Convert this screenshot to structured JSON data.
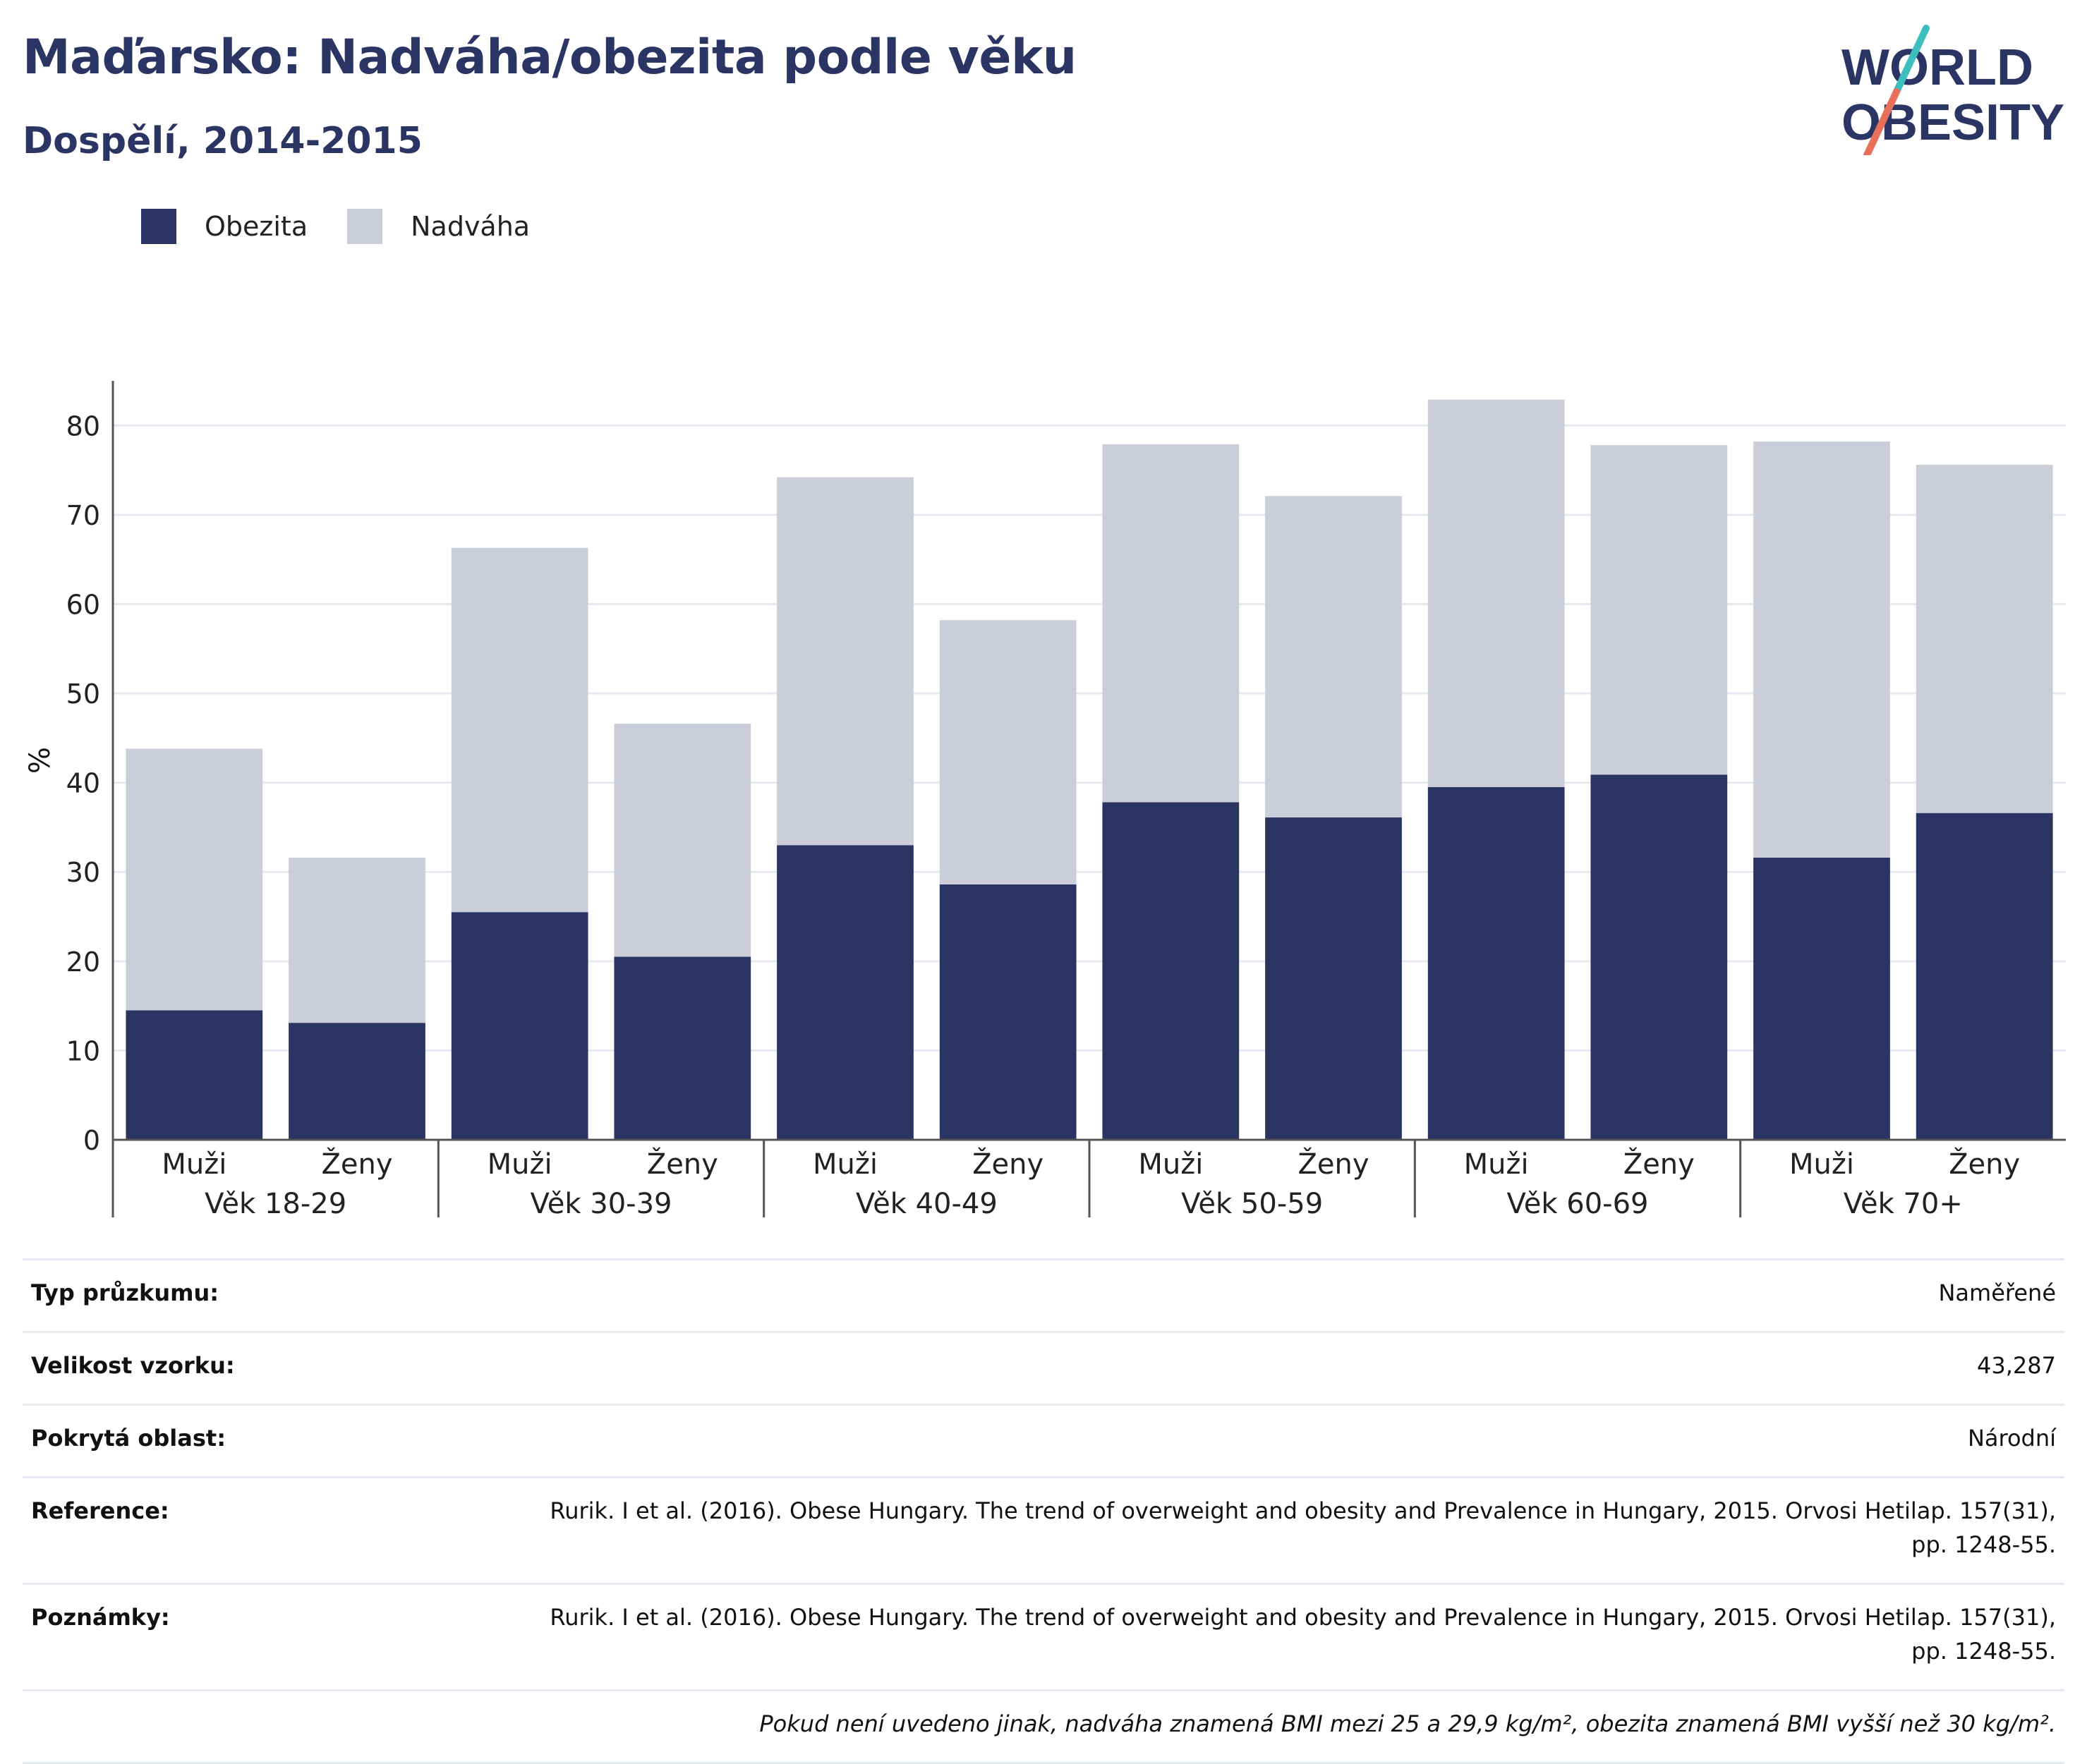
{
  "header": {
    "title": "Maďarsko: Nadváha/obezita podle věku",
    "subtitle": "Dospělí, 2014-2015"
  },
  "logo": {
    "line1": "WORLD",
    "line2": "OBESITY",
    "colors": {
      "text": "#2b3564",
      "slash_top": "#3dbfbf",
      "slash_bottom": "#e8705b"
    }
  },
  "legend": [
    {
      "label": "Obezita",
      "color": "#2b3564"
    },
    {
      "label": "Nadváha",
      "color": "#cbcdd9"
    }
  ],
  "chart_data": {
    "type": "bar",
    "stacked": true,
    "ylabel": "%",
    "ylim": [
      0,
      85
    ],
    "yticks": [
      0,
      10,
      20,
      30,
      40,
      50,
      60,
      70,
      80
    ],
    "grid": true,
    "groups": [
      "Věk 18-29",
      "Věk 30-39",
      "Věk 40-49",
      "Věk 50-59",
      "Věk 60-69",
      "Věk 70+"
    ],
    "subcategories": [
      "Muži",
      "Ženy"
    ],
    "series": [
      {
        "name": "Obezita",
        "color": "#2b3564",
        "values": [
          14.5,
          13.1,
          25.5,
          20.5,
          33.0,
          28.6,
          37.8,
          36.1,
          39.5,
          40.9,
          31.6,
          36.6
        ]
      },
      {
        "name": "Nadváha",
        "color": "#cbcdd9",
        "values": [
          29.3,
          18.5,
          40.8,
          26.1,
          41.2,
          29.6,
          40.1,
          36.0,
          43.4,
          36.9,
          46.6,
          39.0
        ]
      }
    ]
  },
  "info": {
    "rows": [
      {
        "label": "Typ průzkumu:",
        "value": "Naměřené"
      },
      {
        "label": "Velikost vzorku:",
        "value": "43,287"
      },
      {
        "label": "Pokrytá oblast:",
        "value": "Národní"
      },
      {
        "label": "Reference:",
        "value": "Rurik. I et al. (2016). Obese Hungary. The trend of overweight and obesity and Prevalence in Hungary, 2015. Orvosi Hetilap. 157(31), pp. 1248-55."
      },
      {
        "label": "Poznámky:",
        "value": "Rurik. I et al. (2016). Obese Hungary. The trend of overweight and obesity and Prevalence in Hungary, 2015. Orvosi Hetilap. 157(31), pp. 1248-55."
      }
    ],
    "footnote": "Pokud není uvedeno jinak, nadváha znamená BMI mezi 25 a 29,9 kg/m², obezita znamená BMI vyšší než 30 kg/m²."
  }
}
